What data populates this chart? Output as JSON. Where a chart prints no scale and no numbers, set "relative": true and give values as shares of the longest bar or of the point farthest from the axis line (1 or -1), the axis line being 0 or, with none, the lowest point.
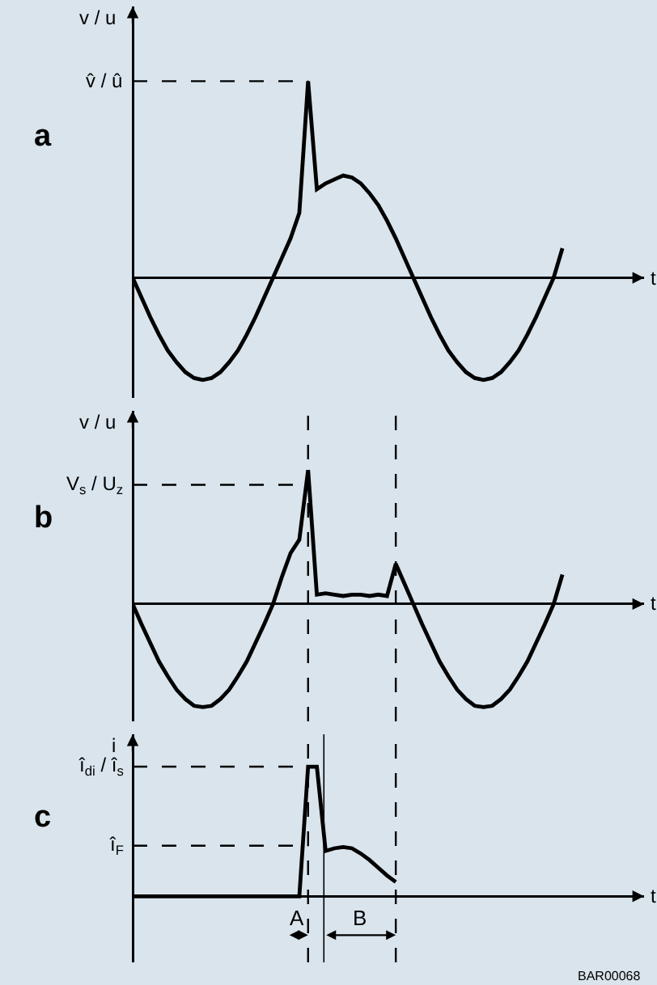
{
  "chart_data": [
    {
      "type": "line",
      "title": "a",
      "xlabel": "t",
      "ylabel": "v / u",
      "relative": true,
      "categories": [
        null,
        null,
        null,
        null,
        null,
        null,
        null,
        null,
        null,
        null,
        null,
        null,
        null,
        null,
        null,
        null,
        null,
        null,
        null,
        null,
        null,
        null,
        null,
        null,
        null,
        null,
        null,
        null,
        null,
        null,
        null,
        null,
        null,
        null,
        null,
        null,
        null,
        null,
        null,
        null,
        null,
        null,
        null,
        null,
        null,
        null,
        null,
        null,
        null,
        null
      ],
      "series": [
        {
          "color": "#000000",
          "values": [
            0,
            -0.1,
            -0.2,
            -0.29,
            -0.37,
            -0.43,
            -0.48,
            -0.51,
            -0.52,
            -0.51,
            -0.48,
            -0.43,
            -0.37,
            -0.29,
            -0.2,
            -0.1,
            0,
            0.1,
            0.2,
            0.33,
            1,
            0.45,
            0.48,
            0.5,
            0.52,
            0.51,
            0.48,
            0.43,
            0.37,
            0.29,
            0.2,
            0.1,
            0,
            -0.1,
            -0.2,
            -0.29,
            -0.37,
            -0.43,
            -0.48,
            -0.51,
            -0.52,
            -0.51,
            -0.48,
            -0.43,
            -0.37,
            -0.29,
            -0.2,
            -0.1,
            0,
            0.15
          ]
        }
      ],
      "ref_lines": [
        {
          "axis": "y",
          "value": 1,
          "label": "v̂ / û",
          "line_style": "dashed"
        }
      ]
    },
    {
      "type": "line",
      "title": "b",
      "xlabel": "t",
      "ylabel": "v / u",
      "relative": true,
      "categories": [
        null,
        null,
        null,
        null,
        null,
        null,
        null,
        null,
        null,
        null,
        null,
        null,
        null,
        null,
        null,
        null,
        null,
        null,
        null,
        null,
        null,
        null,
        null,
        null,
        null,
        null,
        null,
        null,
        null,
        null,
        null,
        null,
        null,
        null,
        null,
        null,
        null,
        null,
        null,
        null,
        null,
        null,
        null,
        null,
        null,
        null,
        null,
        null,
        null,
        null
      ],
      "series": [
        {
          "color": "#000000",
          "values": [
            0,
            -0.15,
            -0.29,
            -0.43,
            -0.54,
            -0.64,
            -0.71,
            -0.76,
            -0.77,
            -0.76,
            -0.71,
            -0.64,
            -0.54,
            -0.43,
            -0.29,
            -0.15,
            0,
            0.2,
            0.38,
            0.48,
            1,
            0.07,
            0.08,
            0.07,
            0.06,
            0.07,
            0.07,
            0.06,
            0.07,
            0.06,
            0.3,
            0.15,
            0,
            -0.15,
            -0.29,
            -0.43,
            -0.54,
            -0.64,
            -0.71,
            -0.76,
            -0.77,
            -0.76,
            -0.71,
            -0.64,
            -0.54,
            -0.43,
            -0.29,
            -0.15,
            0,
            0.22
          ]
        }
      ],
      "ref_lines": [
        {
          "axis": "y",
          "value": 0.89,
          "label": "V$_{s}$ / U$_{z}$",
          "line_style": "dashed"
        }
      ]
    },
    {
      "type": "line",
      "title": "c",
      "xlabel": "t",
      "ylabel": "i",
      "relative": true,
      "categories": [
        null,
        null,
        null,
        null,
        null,
        null,
        null,
        null,
        null,
        null,
        null,
        null,
        null,
        null,
        null,
        null,
        null,
        null,
        null,
        null,
        null,
        null,
        null,
        null,
        null,
        null,
        null,
        null,
        null,
        null,
        null,
        null,
        null,
        null,
        null,
        null,
        null,
        null,
        null,
        null,
        null,
        null,
        null,
        null,
        null,
        null,
        null,
        null,
        null,
        null
      ],
      "series": [
        {
          "color": "#000000",
          "values": [
            0,
            0,
            0,
            0,
            0,
            0,
            0,
            0,
            0,
            0,
            0,
            0,
            0,
            0,
            0,
            0,
            0,
            0,
            0,
            0,
            1,
            1,
            0.35,
            0.37,
            0.38,
            0.37,
            0.33,
            0.28,
            0.22,
            0.16,
            0.11,
            null,
            null,
            null,
            null,
            null,
            null,
            null,
            null,
            null,
            null,
            null,
            null,
            null,
            null,
            null,
            null,
            null,
            null,
            null
          ]
        }
      ],
      "ref_lines": [
        {
          "axis": "y",
          "value": 1,
          "label": "î$_{di}$ / î$_{s}$",
          "line_style": "dashed"
        },
        {
          "axis": "y",
          "value": 0.39,
          "label": "î$_{F}$",
          "line_style": "dashed"
        }
      ],
      "annotations": [
        "A",
        "B",
        "BAR00068"
      ]
    }
  ]
}
